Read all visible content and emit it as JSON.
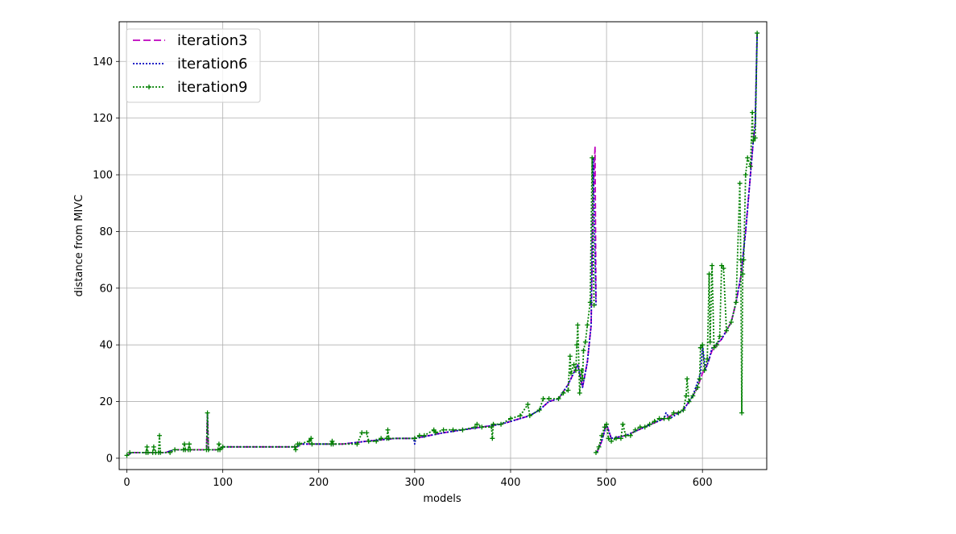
{
  "chart_data": {
    "type": "line",
    "xlabel": "models",
    "ylabel": "distance from MIVC",
    "xlim": [
      -8,
      667
    ],
    "ylim": [
      -4,
      154
    ],
    "xticks": [
      0,
      100,
      200,
      300,
      400,
      500,
      600
    ],
    "yticks": [
      0,
      20,
      40,
      60,
      80,
      100,
      120,
      140
    ],
    "grid": true,
    "legend_position": "upper-left",
    "series": [
      {
        "name": "iteration3",
        "color": "#bf00bf",
        "style": "dashed",
        "marker": "none",
        "segments": [
          [
            [
              0,
              1
            ],
            [
              5,
              2
            ],
            [
              40,
              2
            ],
            [
              50,
              3
            ],
            [
              60,
              3
            ],
            [
              83,
              3
            ],
            [
              84,
              15
            ],
            [
              85,
              3
            ],
            [
              95,
              3
            ],
            [
              100,
              4
            ],
            [
              178,
              4
            ],
            [
              180,
              5
            ],
            [
              225,
              5
            ],
            [
              250,
              6
            ],
            [
              280,
              7
            ],
            [
              300,
              7
            ],
            [
              330,
              9
            ],
            [
              350,
              10
            ],
            [
              370,
              11
            ],
            [
              390,
              12
            ],
            [
              400,
              13
            ],
            [
              420,
              15
            ],
            [
              430,
              17
            ],
            [
              440,
              20
            ],
            [
              450,
              21
            ],
            [
              460,
              26
            ],
            [
              470,
              33
            ],
            [
              475,
              25
            ],
            [
              480,
              34
            ],
            [
              484,
              47
            ],
            [
              486,
              90
            ],
            [
              487,
              100
            ],
            [
              488,
              110
            ],
            [
              489,
              55
            ]
          ],
          [
            [
              490,
              2
            ],
            [
              495,
              6
            ],
            [
              500,
              12
            ],
            [
              505,
              7
            ],
            [
              520,
              8
            ],
            [
              540,
              11
            ],
            [
              560,
              14
            ],
            [
              580,
              17
            ],
            [
              590,
              22
            ],
            [
              595,
              25
            ],
            [
              600,
              30
            ],
            [
              605,
              33
            ],
            [
              610,
              38
            ],
            [
              620,
              42
            ],
            [
              630,
              48
            ],
            [
              635,
              55
            ],
            [
              640,
              64
            ],
            [
              645,
              80
            ],
            [
              650,
              100
            ],
            [
              653,
              112
            ],
            [
              655,
              118
            ],
            [
              657,
              150
            ]
          ]
        ]
      },
      {
        "name": "iteration6",
        "color": "#0000bf",
        "style": "dotted",
        "marker": "none",
        "segments": [
          [
            [
              0,
              1
            ],
            [
              5,
              2
            ],
            [
              40,
              2
            ],
            [
              50,
              3
            ],
            [
              83,
              3
            ],
            [
              84,
              16
            ],
            [
              85,
              3
            ],
            [
              95,
              3
            ],
            [
              100,
              4
            ],
            [
              178,
              4
            ],
            [
              180,
              5
            ],
            [
              225,
              5
            ],
            [
              250,
              6
            ],
            [
              280,
              7
            ],
            [
              299,
              7
            ],
            [
              300,
              5
            ],
            [
              301,
              7
            ],
            [
              330,
              9
            ],
            [
              350,
              10
            ],
            [
              370,
              11
            ],
            [
              390,
              12
            ],
            [
              400,
              13
            ],
            [
              420,
              15
            ],
            [
              430,
              17
            ],
            [
              440,
              20
            ],
            [
              450,
              21
            ],
            [
              460,
              26
            ],
            [
              470,
              33
            ],
            [
              475,
              25
            ],
            [
              480,
              34
            ],
            [
              484,
              47
            ],
            [
              486,
              106
            ],
            [
              489,
              54
            ]
          ],
          [
            [
              490,
              2
            ],
            [
              495,
              6
            ],
            [
              500,
              12
            ],
            [
              505,
              7
            ],
            [
              520,
              8
            ],
            [
              540,
              11
            ],
            [
              560,
              14
            ],
            [
              562,
              16
            ],
            [
              566,
              14
            ],
            [
              580,
              17
            ],
            [
              590,
              22
            ],
            [
              598,
              30
            ],
            [
              600,
              40
            ],
            [
              603,
              31
            ],
            [
              607,
              35
            ],
            [
              610,
              39
            ],
            [
              620,
              42
            ],
            [
              630,
              48
            ],
            [
              635,
              55
            ],
            [
              640,
              64
            ],
            [
              645,
              80
            ],
            [
              650,
              100
            ],
            [
              653,
              112
            ],
            [
              655,
              118
            ],
            [
              657,
              150
            ]
          ]
        ]
      },
      {
        "name": "iteration9",
        "color": "#008000",
        "style": "dotted",
        "marker": "+",
        "segments": [
          [
            [
              0,
              1
            ],
            [
              3,
              2
            ],
            [
              20,
              2
            ],
            [
              21,
              4
            ],
            [
              22,
              2
            ],
            [
              27,
              2
            ],
            [
              28,
              4
            ],
            [
              30,
              2
            ],
            [
              33,
              2
            ],
            [
              34,
              8
            ],
            [
              35,
              2
            ],
            [
              45,
              2
            ],
            [
              50,
              3
            ],
            [
              59,
              3
            ],
            [
              60,
              5
            ],
            [
              61,
              3
            ],
            [
              64,
              3
            ],
            [
              65,
              5
            ],
            [
              66,
              3
            ],
            [
              83,
              3
            ],
            [
              84,
              16
            ],
            [
              85,
              3
            ],
            [
              95,
              3
            ],
            [
              96,
              5
            ],
            [
              97,
              3
            ],
            [
              100,
              4
            ],
            [
              175,
              4
            ],
            [
              176,
              3
            ],
            [
              178,
              5
            ],
            [
              180,
              5
            ],
            [
              190,
              6
            ],
            [
              192,
              7
            ],
            [
              193,
              5
            ],
            [
              213,
              5
            ],
            [
              214,
              6
            ],
            [
              215,
              5
            ],
            [
              240,
              5
            ],
            [
              245,
              9
            ],
            [
              250,
              9
            ],
            [
              252,
              6
            ],
            [
              260,
              6
            ],
            [
              265,
              7
            ],
            [
              271,
              7
            ],
            [
              272,
              10
            ],
            [
              273,
              7
            ],
            [
              300,
              7
            ],
            [
              305,
              8
            ],
            [
              310,
              8
            ],
            [
              320,
              10
            ],
            [
              322,
              9
            ],
            [
              330,
              10
            ],
            [
              340,
              10
            ],
            [
              350,
              10
            ],
            [
              363,
              11
            ],
            [
              365,
              12
            ],
            [
              370,
              11
            ],
            [
              380,
              11
            ],
            [
              381,
              7
            ],
            [
              382,
              12
            ],
            [
              390,
              12
            ],
            [
              400,
              14
            ],
            [
              410,
              15
            ],
            [
              418,
              19
            ],
            [
              420,
              15
            ],
            [
              430,
              17
            ],
            [
              434,
              21
            ],
            [
              440,
              21
            ],
            [
              450,
              21
            ],
            [
              455,
              23
            ],
            [
              460,
              24
            ],
            [
              462,
              36
            ],
            [
              463,
              30
            ],
            [
              466,
              33
            ],
            [
              468,
              31
            ],
            [
              469,
              40
            ],
            [
              470,
              47
            ],
            [
              472,
              23
            ],
            [
              474,
              31
            ],
            [
              475,
              28
            ],
            [
              476,
              38
            ],
            [
              478,
              41
            ],
            [
              480,
              47
            ],
            [
              483,
              55
            ],
            [
              485,
              106
            ],
            [
              487,
              54
            ]
          ],
          [
            [
              489,
              2
            ],
            [
              492,
              4
            ],
            [
              495,
              8
            ],
            [
              498,
              11
            ],
            [
              500,
              12
            ],
            [
              502,
              7
            ],
            [
              505,
              6
            ],
            [
              510,
              7
            ],
            [
              515,
              7
            ],
            [
              517,
              12
            ],
            [
              520,
              8
            ],
            [
              525,
              8
            ],
            [
              530,
              10
            ],
            [
              535,
              11
            ],
            [
              540,
              11
            ],
            [
              545,
              12
            ],
            [
              550,
              13
            ],
            [
              555,
              14
            ],
            [
              560,
              14
            ],
            [
              565,
              14
            ],
            [
              570,
              16
            ],
            [
              575,
              16
            ],
            [
              580,
              17
            ],
            [
              583,
              22
            ],
            [
              584,
              28
            ],
            [
              586,
              20
            ],
            [
              590,
              22
            ],
            [
              595,
              25
            ],
            [
              597,
              28
            ],
            [
              598,
              39
            ],
            [
              600,
              40
            ],
            [
              602,
              31
            ],
            [
              605,
              35
            ],
            [
              607,
              65
            ],
            [
              608,
              41
            ],
            [
              610,
              68
            ],
            [
              612,
              39
            ],
            [
              615,
              40
            ],
            [
              618,
              43
            ],
            [
              620,
              68
            ],
            [
              622,
              67
            ],
            [
              625,
              45
            ],
            [
              630,
              48
            ],
            [
              635,
              55
            ],
            [
              639,
              97
            ],
            [
              640,
              70
            ],
            [
              641,
              16
            ],
            [
              642,
              65
            ],
            [
              643,
              70
            ],
            [
              645,
              100
            ],
            [
              647,
              106
            ],
            [
              650,
              103
            ],
            [
              652,
              122
            ],
            [
              653,
              112
            ],
            [
              655,
              113
            ],
            [
              657,
              150
            ]
          ]
        ]
      }
    ]
  }
}
